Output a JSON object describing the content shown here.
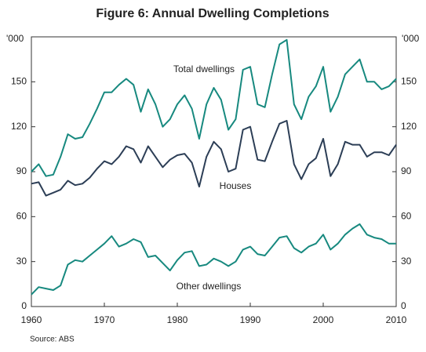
{
  "chart_data": {
    "type": "line",
    "title": "Figure 6: Annual Dwelling Completions",
    "y_unit": "'000",
    "source": "Source: ABS",
    "x": [
      1960,
      1961,
      1962,
      1963,
      1964,
      1965,
      1966,
      1967,
      1968,
      1969,
      1970,
      1971,
      1972,
      1973,
      1974,
      1975,
      1976,
      1977,
      1978,
      1979,
      1980,
      1981,
      1982,
      1983,
      1984,
      1985,
      1986,
      1987,
      1988,
      1989,
      1990,
      1991,
      1992,
      1993,
      1994,
      1995,
      1996,
      1997,
      1998,
      1999,
      2000,
      2001,
      2002,
      2003,
      2004,
      2005,
      2006,
      2007,
      2008,
      2009,
      2010
    ],
    "series": [
      {
        "name": "Total dwellings",
        "color": "#17897f",
        "values": [
          90,
          95,
          87,
          88,
          100,
          115,
          112,
          113,
          122,
          132,
          143,
          143,
          148,
          152,
          148,
          130,
          145,
          135,
          120,
          125,
          135,
          141,
          132,
          112,
          135,
          146,
          138,
          118,
          125,
          158,
          160,
          135,
          133,
          155,
          175,
          178,
          135,
          125,
          140,
          147,
          160,
          130,
          140,
          155,
          160,
          165,
          150,
          150,
          145,
          147,
          152
        ]
      },
      {
        "name": "Houses",
        "color": "#2c3e56",
        "values": [
          82,
          83,
          74,
          76,
          78,
          84,
          81,
          82,
          86,
          92,
          97,
          95,
          100,
          107,
          105,
          96,
          107,
          100,
          93,
          98,
          101,
          102,
          96,
          80,
          100,
          110,
          105,
          90,
          92,
          118,
          120,
          98,
          97,
          110,
          122,
          124,
          95,
          85,
          95,
          99,
          112,
          87,
          95,
          110,
          108,
          108,
          100,
          103,
          103,
          101,
          108
        ]
      },
      {
        "name": "Other dwellings",
        "color": "#17897f",
        "values": [
          8,
          13,
          12,
          11,
          14,
          28,
          31,
          30,
          34,
          38,
          42,
          47,
          40,
          42,
          45,
          43,
          33,
          34,
          29,
          24,
          31,
          36,
          37,
          27,
          28,
          32,
          30,
          27,
          30,
          38,
          40,
          35,
          34,
          40,
          46,
          47,
          39,
          36,
          40,
          42,
          48,
          38,
          42,
          48,
          52,
          55,
          48,
          46,
          45,
          42,
          42
        ]
      }
    ],
    "xlim": [
      1960,
      2010
    ],
    "xticks": [
      1960,
      1970,
      1980,
      1990,
      2000,
      2010
    ],
    "ylim": [
      0,
      180
    ],
    "yticks": [
      0,
      30,
      60,
      90,
      120,
      150
    ]
  }
}
